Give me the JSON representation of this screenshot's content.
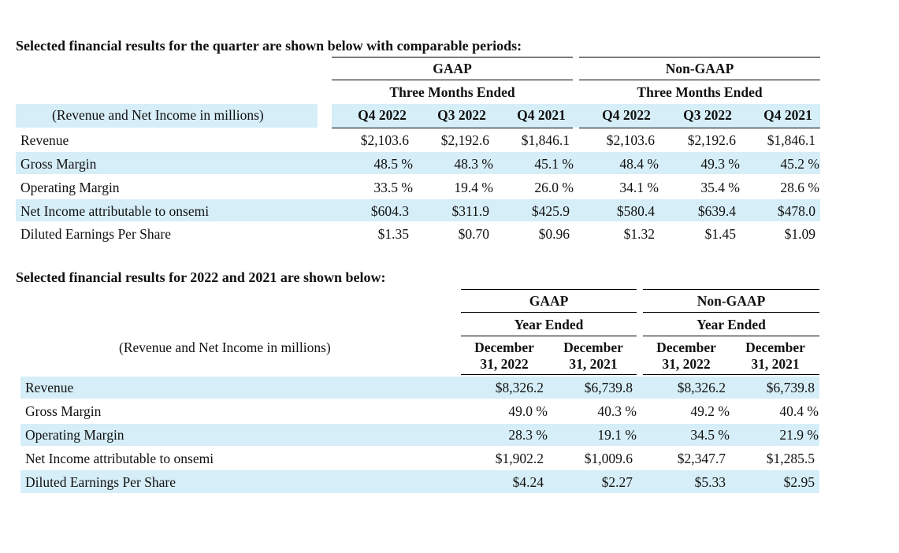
{
  "section1": {
    "heading": "Selected financial results for the quarter are shown below with comparable periods:",
    "gaap_label": "GAAP",
    "nongaap_label": "Non-GAAP",
    "gaap_period": "Three Months Ended",
    "nongaap_period": "Three Months Ended",
    "units_label": "(Revenue and Net Income in millions)",
    "columns": [
      "Q4 2022",
      "Q3 2022",
      "Q4 2021",
      "Q4 2022",
      "Q3 2022",
      "Q4 2021"
    ],
    "rows": [
      {
        "label": "Revenue",
        "values": [
          "$2,103.6",
          "$2,192.6",
          "$1,846.1",
          "$2,103.6",
          "$2,192.6",
          "$1,846.1"
        ]
      },
      {
        "label": "Gross Margin",
        "values": [
          "48.5 %",
          "48.3 %",
          "45.1 %",
          "48.4 %",
          "49.3 %",
          "45.2 %"
        ]
      },
      {
        "label": "Operating Margin",
        "values": [
          "33.5 %",
          "19.4 %",
          "26.0 %",
          "34.1 %",
          "35.4 %",
          "28.6 %"
        ]
      },
      {
        "label": "Net Income attributable to onsemi",
        "values": [
          "$604.3",
          "$311.9",
          "$425.9",
          "$580.4",
          "$639.4",
          "$478.0"
        ]
      },
      {
        "label": "Diluted Earnings Per Share",
        "values": [
          "$1.35",
          "$0.70",
          "$0.96",
          "$1.32",
          "$1.45",
          "$1.09"
        ]
      }
    ]
  },
  "section2": {
    "heading": "Selected financial results for 2022 and 2021 are shown below:",
    "gaap_label": "GAAP",
    "nongaap_label": "Non-GAAP",
    "gaap_period": "Year Ended",
    "nongaap_period": "Year Ended",
    "units_label": "(Revenue and Net Income in millions)",
    "columns": [
      {
        "line1": "December",
        "line2": "31, 2022"
      },
      {
        "line1": "December",
        "line2": "31, 2021"
      },
      {
        "line1": "December",
        "line2": "31, 2022"
      },
      {
        "line1": "December",
        "line2": "31, 2021"
      }
    ],
    "rows": [
      {
        "label": "Revenue",
        "values": [
          "$8,326.2",
          "$6,739.8",
          "$8,326.2",
          "$6,739.8"
        ]
      },
      {
        "label": "Gross Margin",
        "values": [
          "49.0 %",
          "40.3 %",
          "49.2 %",
          "40.4 %"
        ]
      },
      {
        "label": "Operating Margin",
        "values": [
          "28.3 %",
          "19.1 %",
          "34.5 %",
          "21.9 %"
        ]
      },
      {
        "label": "Net Income attributable to onsemi",
        "values": [
          "$1,902.2",
          "$1,009.6",
          "$2,347.7",
          "$1,285.5"
        ]
      },
      {
        "label": "Diluted Earnings Per Share",
        "values": [
          "$4.24",
          "$2.27",
          "$5.33",
          "$2.95"
        ]
      }
    ]
  }
}
